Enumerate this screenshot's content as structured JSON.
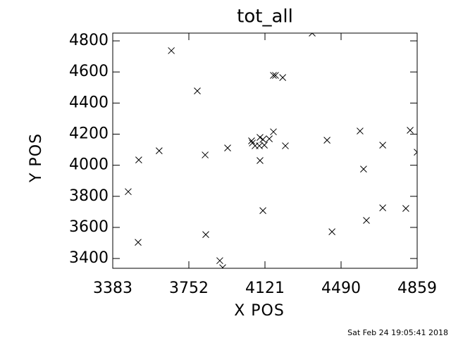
{
  "chart_data": {
    "type": "scatter",
    "title": "tot_all",
    "x_label": "X POS",
    "y_label": "Y POS",
    "timestamp": "Sat Feb 24 19:05:41 2018",
    "color": "#000000",
    "xlim": [
      3383,
      4859
    ],
    "xticks": [
      3383,
      3752,
      4121,
      4490,
      4859
    ],
    "ylim": [
      3337,
      4850
    ],
    "yticks": [
      3400,
      3600,
      3800,
      4000,
      4200,
      4400,
      4600,
      4800
    ],
    "x": [
      3458,
      3509,
      3506,
      3608,
      3667,
      3793,
      3831,
      3834,
      3902,
      3916,
      3940,
      4056,
      4060,
      4073,
      4094,
      4097,
      4097,
      4111,
      4118,
      4111,
      4142,
      4162,
      4162,
      4172,
      4207,
      4220,
      4350,
      4422,
      4446,
      4582,
      4599,
      4613,
      4692,
      4692,
      4804,
      4825,
      4859
    ],
    "y": [
      3830,
      4034,
      3504,
      4093,
      4737,
      4478,
      4066,
      3554,
      3386,
      3341,
      4111,
      4157,
      4143,
      4125,
      4125,
      4179,
      4030,
      4166,
      4129,
      3708,
      4170,
      4215,
      4578,
      4578,
      4564,
      4125,
      4850,
      4161,
      3572,
      4220,
      3975,
      3645,
      4129,
      3726,
      3722,
      4225,
      4084
    ]
  }
}
